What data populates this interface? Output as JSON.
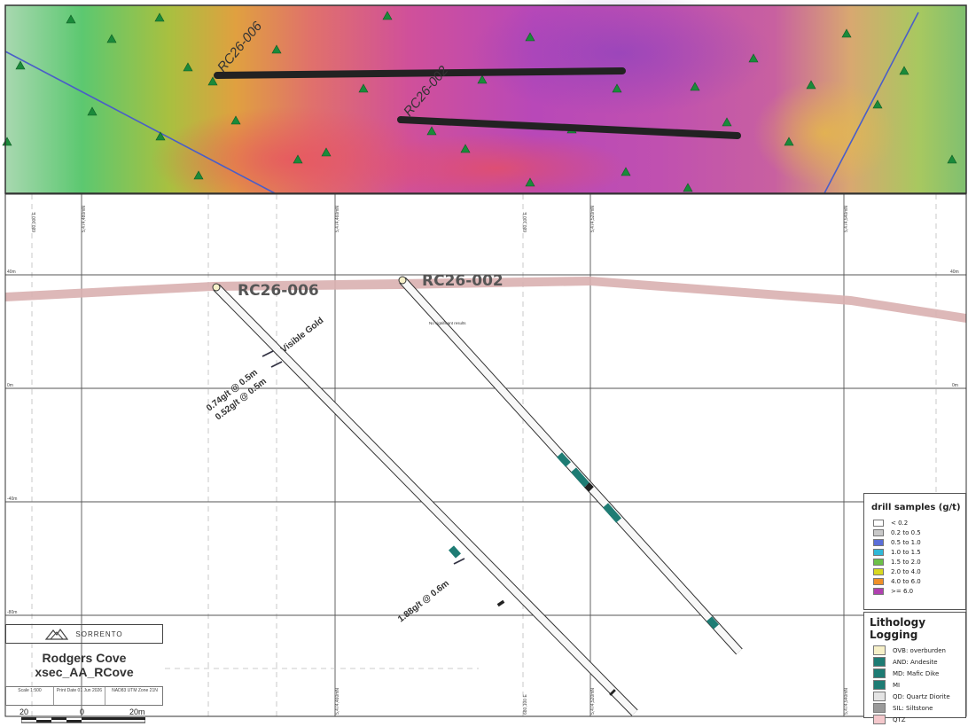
{
  "map": {
    "drillholes": [
      {
        "label": "RC26-006",
        "plan_label": "RC26-006"
      },
      {
        "label": "RC26-002",
        "plan_label": "RC26-002"
      }
    ],
    "annotations": {
      "visible_gold": "Visible Gold",
      "interval_1": "0.74g/t @ 0.5m",
      "interval_2": "0.52g/t @ 0.5m",
      "interval_3": "1.88g/t @ 0.6m",
      "no_results": "No significant results"
    },
    "elevation_labels": {
      "top_left": "40m",
      "mid_left": "0m",
      "low_left": "-40m",
      "bottom_left": "-80m",
      "top_right": "40m",
      "mid_right": "0m"
    },
    "grid_labels": [
      "680,000 E",
      "5,474,480mN",
      "5,474,460mN",
      "680,100 E",
      "5,474,520mN",
      "5,474,540mN"
    ],
    "bottom_grid_labels": [
      "5,474,460mN",
      "680,100 E",
      "5,474,520mN",
      "5,474,540mN"
    ]
  },
  "legend_drill": {
    "title": "drill samples (g/t)",
    "items": [
      {
        "label": "< 0.2",
        "color": "#ffffff"
      },
      {
        "label": "0.2 to 0.5",
        "color": "#c8c8c8"
      },
      {
        "label": "0.5 to 1.0",
        "color": "#5a6ed8"
      },
      {
        "label": "1.0 to 1.5",
        "color": "#30b8d8"
      },
      {
        "label": "1.5 to 2.0",
        "color": "#6cc048"
      },
      {
        "label": "2.0 to 4.0",
        "color": "#d8d820"
      },
      {
        "label": "4.0 to 6.0",
        "color": "#f09028"
      },
      {
        "label": ">= 6.0",
        "color": "#b040b0"
      }
    ]
  },
  "legend_lith": {
    "title": "Lithology Logging",
    "items": [
      {
        "label": "OVB: overburden",
        "color": "#f6f0c8"
      },
      {
        "label": "AND: Andesite",
        "color": "#1e7c74"
      },
      {
        "label": "MD: Mafic Dike",
        "color": "#1e7c74"
      },
      {
        "label": "MI",
        "color": "#1e7c74"
      },
      {
        "label": "QD: Quartz Diorite",
        "color": "#e4e4e4"
      },
      {
        "label": "SIL: Siltstone",
        "color": "#9a9a9a"
      },
      {
        "label": "QTZ",
        "color": "#f4c8cc"
      }
    ]
  },
  "title_block": {
    "logo_text": "SORRENTO",
    "title": "Rodgers Cove",
    "subtitle": "xsec_AA_RCove",
    "cell_1": "Scale 1:500",
    "cell_2": "Print Date 01 Jun 2026",
    "cell_3": "NAD83 UTM Zone 21N",
    "scale_left": "20",
    "scale_mid": "0",
    "scale_right": "20m"
  },
  "colors": {
    "drill_trace": "#222222",
    "ground_surface": "#d9b0b0",
    "fault_line": "#4a5ec8",
    "station_marker": "#1a8a3a",
    "lith_intercept": "#1e7c74"
  }
}
